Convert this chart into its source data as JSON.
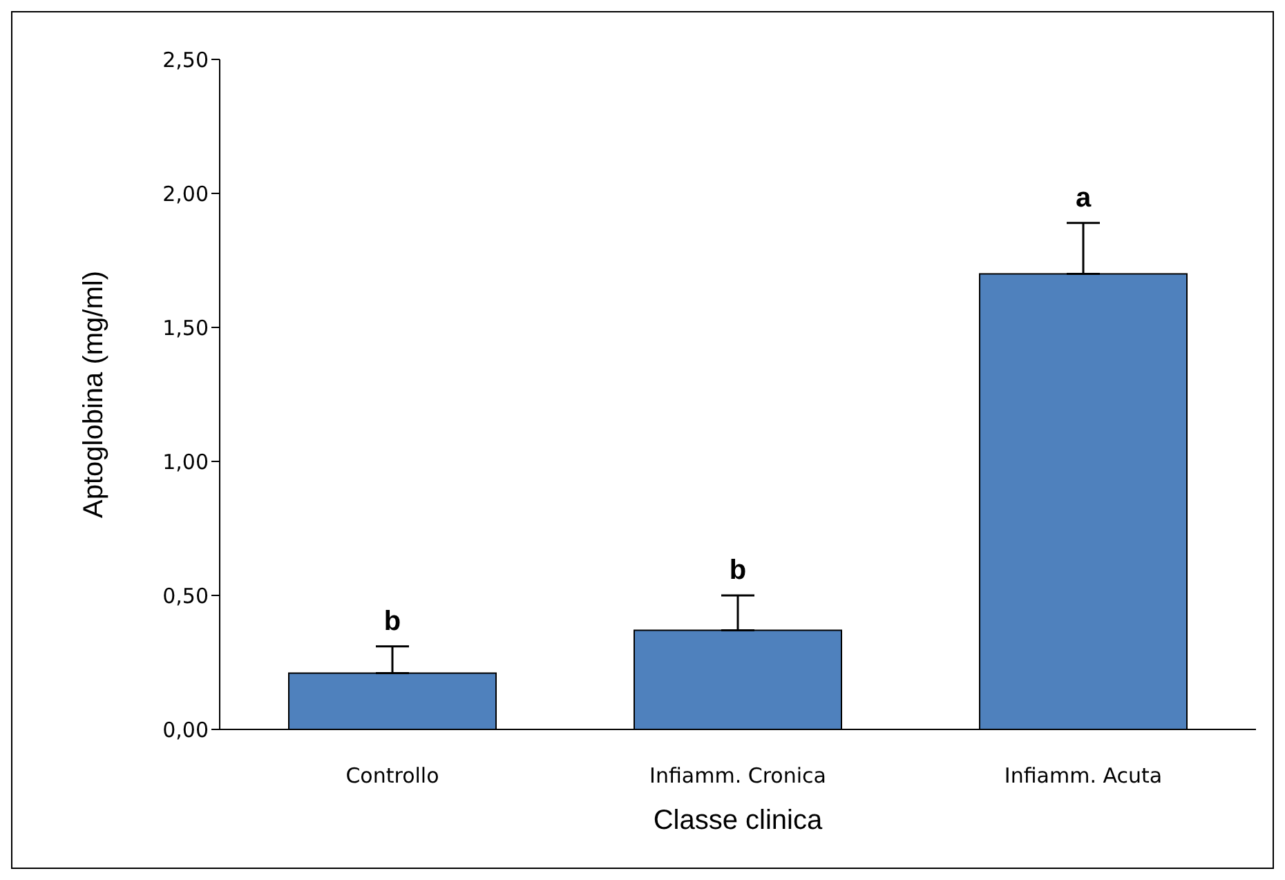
{
  "chart_data": {
    "type": "bar",
    "categories": [
      "Controllo",
      "Infiamm. Cronica",
      "Infiamm. Acuta"
    ],
    "values": [
      0.21,
      0.37,
      1.7
    ],
    "errors": [
      [
        0.21,
        0.31
      ],
      [
        0.37,
        0.5
      ],
      [
        1.7,
        1.89
      ]
    ],
    "color": "#4f81bd",
    "xlabel": "Classe clinica",
    "ylabel": "Aptoglobina (mg/ml)",
    "ylim": [
      0,
      2.5
    ],
    "yticks": [
      {
        "value": 0,
        "label": "0,00"
      },
      {
        "value": 0.5,
        "label": "0,50"
      },
      {
        "value": 1,
        "label": "1,00"
      },
      {
        "value": 1.5,
        "label": "1,50"
      },
      {
        "value": 2,
        "label": "2,00"
      },
      {
        "value": 2.5,
        "label": "2,50"
      }
    ],
    "annotations": [
      "b",
      "b",
      "a"
    ],
    "grid": false,
    "legend": false
  }
}
